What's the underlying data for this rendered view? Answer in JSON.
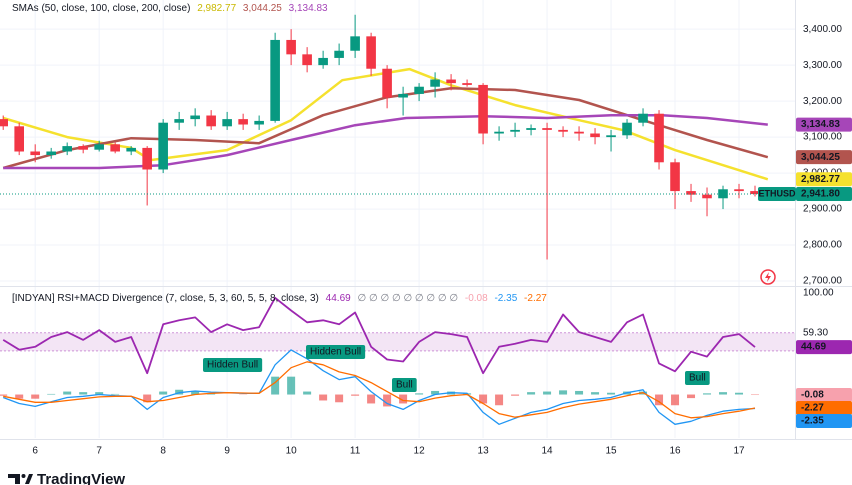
{
  "chart_data": [
    {
      "type": "candlestick",
      "title": "SMAs (50, close, 100, close, 200, close)",
      "symbol": "ETHUSD",
      "close_label": "2,941.80",
      "x": [
        5.5,
        5.75,
        6,
        6.25,
        6.5,
        6.75,
        7,
        7.25,
        7.5,
        7.75,
        8,
        8.25,
        8.5,
        8.75,
        9,
        9.25,
        9.5,
        9.75,
        10,
        10.25,
        10.5,
        10.75,
        11,
        11.25,
        11.5,
        11.75,
        12,
        12.25,
        12.5,
        12.75,
        13,
        13.25,
        13.5,
        13.75,
        14,
        14.25,
        14.5,
        14.75,
        15,
        15.25,
        15.5,
        15.75,
        16,
        16.25,
        16.5,
        16.75,
        17,
        17.25
      ],
      "open": [
        3150,
        3130,
        3060,
        3050,
        3060,
        3075,
        3065,
        3080,
        3060,
        3070,
        3010,
        3140,
        3150,
        3160,
        3130,
        3150,
        3135,
        3145,
        3370,
        3330,
        3300,
        3320,
        3340,
        3380,
        3290,
        3210,
        3220,
        3240,
        3260,
        3250,
        3245,
        3110,
        3115,
        3120,
        3125,
        3120,
        3115,
        3110,
        3100,
        3105,
        3140,
        3165,
        3030,
        2950,
        2940,
        2930,
        2955,
        2950
      ],
      "high": [
        3160,
        3140,
        3080,
        3070,
        3085,
        3080,
        3090,
        3085,
        3075,
        3075,
        3150,
        3170,
        3180,
        3175,
        3170,
        3165,
        3160,
        3390,
        3400,
        3350,
        3340,
        3360,
        3440,
        3390,
        3300,
        3240,
        3250,
        3280,
        3275,
        3260,
        3250,
        3130,
        3140,
        3135,
        3140,
        3130,
        3130,
        3125,
        3120,
        3150,
        3180,
        3175,
        3040,
        2970,
        2960,
        2965,
        2970,
        2965
      ],
      "low": [
        3120,
        3050,
        3030,
        3040,
        3050,
        3055,
        3060,
        3055,
        3050,
        2910,
        3000,
        3120,
        3130,
        3120,
        3120,
        3120,
        3120,
        3140,
        3300,
        3280,
        3290,
        3300,
        3320,
        3270,
        3180,
        3160,
        3200,
        3210,
        3230,
        3240,
        3080,
        3090,
        3100,
        3105,
        2760,
        3100,
        3090,
        3080,
        3060,
        3095,
        3130,
        3010,
        2900,
        2920,
        2880,
        2900,
        2930,
        2935
      ],
      "close": [
        3130,
        3060,
        3050,
        3060,
        3075,
        3065,
        3080,
        3060,
        3070,
        3010,
        3140,
        3150,
        3160,
        3130,
        3150,
        3135,
        3145,
        3370,
        3330,
        3300,
        3320,
        3340,
        3380,
        3290,
        3210,
        3220,
        3240,
        3260,
        3250,
        3245,
        3110,
        3115,
        3120,
        3125,
        3120,
        3115,
        3110,
        3100,
        3105,
        3140,
        3165,
        3030,
        2950,
        2940,
        2930,
        2955,
        2950,
        2941.8
      ],
      "up_color": "#089981",
      "down_color": "#f23645",
      "overlays": [
        {
          "color": "#f5e12e",
          "label_text_color": "#131722",
          "last_label": "2,982.77",
          "x": [
            5.5,
            6.5,
            7.5,
            7.8,
            9,
            10,
            10.8,
            11.85,
            12.5,
            13.5,
            14.5,
            15.2,
            16,
            17,
            17.45
          ],
          "values": [
            3153,
            3100,
            3070,
            3036,
            3064,
            3147,
            3258,
            3289,
            3244,
            3189,
            3147,
            3119,
            3064,
            3008,
            2982.77
          ]
        },
        {
          "color": "#b2544e",
          "label_text_color": "#ffffff",
          "last_label": "3,044.25",
          "x": [
            5.5,
            6.5,
            7.5,
            8.5,
            9.5,
            10.5,
            11.5,
            12.5,
            13.5,
            14.5,
            15.5,
            16.5,
            17.45
          ],
          "values": [
            3014,
            3064,
            3097,
            3092,
            3083,
            3161,
            3211,
            3236,
            3231,
            3203,
            3147,
            3092,
            3044.25
          ]
        },
        {
          "color": "#a646b8",
          "label_text_color": "#ffffff",
          "last_label": "3,134.83",
          "x": [
            5.5,
            7,
            8,
            9,
            10,
            11,
            11.8,
            13,
            14,
            15,
            15.8,
            16.5,
            17.45
          ],
          "values": [
            3014,
            3014,
            3022,
            3050,
            3092,
            3133,
            3153,
            3158,
            3153,
            3161,
            3161,
            3153,
            3134.83
          ]
        }
      ],
      "xlim": [
        5.45,
        17.875
      ],
      "ylim": [
        2689,
        3481
      ],
      "yticks": [
        {
          "value": 2700,
          "label": "2,700.00"
        },
        {
          "value": 2800,
          "label": "2,800.00"
        },
        {
          "value": 2900,
          "label": "2,900.00"
        },
        {
          "value": 3000,
          "label": "3,000.00"
        },
        {
          "value": 3100,
          "label": "3,100.00"
        },
        {
          "value": 3200,
          "label": "3,200.00"
        },
        {
          "value": 3300,
          "label": "3,300.00"
        },
        {
          "value": 3400,
          "label": "3,400.00"
        }
      ],
      "grid": true
    },
    {
      "type": "line",
      "title": "[INDYAN] RSI+MACD Divergence (7, close, 5, 3, 60, 5, 5, 8, close, 3)",
      "na_values": "∅ ∅ ∅ ∅ ∅ ∅ ∅ ∅ ∅",
      "x": [
        5.5,
        5.75,
        6,
        6.25,
        6.5,
        6.75,
        7,
        7.25,
        7.5,
        7.75,
        8,
        8.25,
        8.5,
        8.75,
        9,
        9.25,
        9.5,
        9.75,
        10,
        10.25,
        10.5,
        10.75,
        11,
        11.25,
        11.5,
        11.75,
        12,
        12.25,
        12.5,
        12.75,
        13,
        13.25,
        13.5,
        13.75,
        14,
        14.25,
        14.5,
        14.75,
        15,
        15.25,
        15.5,
        15.75,
        16,
        16.25,
        16.5,
        16.75,
        17,
        17.25
      ],
      "values": [
        52,
        42,
        45,
        55,
        60,
        52,
        62,
        50,
        55,
        18,
        68,
        72,
        75,
        60,
        68,
        62,
        65,
        95,
        82,
        70,
        72,
        68,
        80,
        45,
        32,
        30,
        50,
        60,
        58,
        55,
        18,
        45,
        48,
        52,
        50,
        78,
        60,
        55,
        50,
        70,
        78,
        28,
        20,
        40,
        35,
        55,
        58,
        44.69
      ],
      "color": "#9c27b0",
      "band": [
        40.8,
        59.3
      ],
      "band_color": "#f3e5f5",
      "annotations": [
        "Hidden Bull",
        "Hidden Bull",
        "Bull",
        "Bull"
      ],
      "annotation_color": "#089981",
      "xlim": [
        5.45,
        17.875
      ],
      "ylim": [
        6,
        105
      ],
      "yticks": [
        {
          "value": 100,
          "label": "100.00"
        },
        {
          "value": 59.3,
          "label": "59.30"
        },
        {
          "value": 40.8,
          "label": "40.80"
        }
      ]
    },
    {
      "type": "macd",
      "x": [
        5.5,
        5.75,
        6,
        6.25,
        6.5,
        6.75,
        7,
        7.25,
        7.5,
        7.75,
        8,
        8.25,
        8.5,
        8.75,
        9,
        9.25,
        9.5,
        9.75,
        10,
        10.25,
        10.5,
        10.75,
        11,
        11.25,
        11.5,
        11.75,
        12,
        12.25,
        12.5,
        12.75,
        13,
        13.25,
        13.5,
        13.75,
        14,
        14.25,
        14.5,
        14.75,
        15,
        15.25,
        15.5,
        15.75,
        16,
        16.25,
        16.5,
        16.75,
        17,
        17.25
      ],
      "macd": [
        -0.5,
        -1.5,
        -2,
        -1.2,
        -0.5,
        -0.3,
        0,
        -0.2,
        -0.3,
        -2.5,
        -0.5,
        0.3,
        0.6,
        0.4,
        0.3,
        0.2,
        0.2,
        5,
        7.5,
        6,
        4,
        2.5,
        3,
        0.5,
        -1.5,
        -2.5,
        -1,
        0,
        0.3,
        0.2,
        -3,
        -5,
        -4,
        -3,
        -2.5,
        -1.5,
        -1,
        -0.8,
        -0.5,
        0.3,
        0.8,
        -3,
        -5,
        -4.5,
        -3.5,
        -2.8,
        -2.5,
        -2.35
      ],
      "signal": [
        -0.3,
        -0.8,
        -1.3,
        -1.3,
        -1.0,
        -0.7,
        -0.4,
        -0.3,
        -0.3,
        -1.2,
        -1.0,
        -0.5,
        0,
        0.2,
        0.3,
        0.25,
        0.2,
        2,
        4.5,
        5.5,
        5,
        3.8,
        3.2,
        2,
        0.5,
        -1,
        -1.2,
        -0.6,
        -0.2,
        0,
        -1.5,
        -3.2,
        -3.8,
        -3.4,
        -3,
        -2.2,
        -1.6,
        -1.2,
        -0.8,
        -0.2,
        0.3,
        -1.2,
        -3.2,
        -3.9,
        -3.7,
        -3.2,
        -2.8,
        -2.27
      ],
      "histogram": [
        -0.2,
        -0.7,
        -0.7,
        0.1,
        0.5,
        0.4,
        0.4,
        0.1,
        0,
        -1.3,
        0.5,
        0.8,
        0.6,
        0.2,
        0,
        -0.05,
        0,
        3,
        3,
        0.5,
        -1,
        -1.3,
        -0.2,
        -1.5,
        -2,
        -1.5,
        0.2,
        0.6,
        0.5,
        0.2,
        -1.5,
        -1.8,
        -0.2,
        0.4,
        0.5,
        0.7,
        0.6,
        0.4,
        0.3,
        0.5,
        0.5,
        -1.8,
        -1.8,
        -0.6,
        0.2,
        0.4,
        0.3,
        -0.08
      ],
      "macd_color": "#2196f3",
      "signal_color": "#ff6d00",
      "hist_up_color": "#26a69a",
      "hist_down_color": "#ef5350",
      "hist_label_color": "#f7a1ad",
      "xlim": [
        5.45,
        17.875
      ],
      "ylim": [
        -7.3,
        1.6
      ],
      "xticks": [
        6,
        7,
        8,
        9,
        10,
        11,
        12,
        13,
        14,
        15,
        16,
        17
      ]
    }
  ],
  "footer": {
    "logo": "TradingView"
  }
}
